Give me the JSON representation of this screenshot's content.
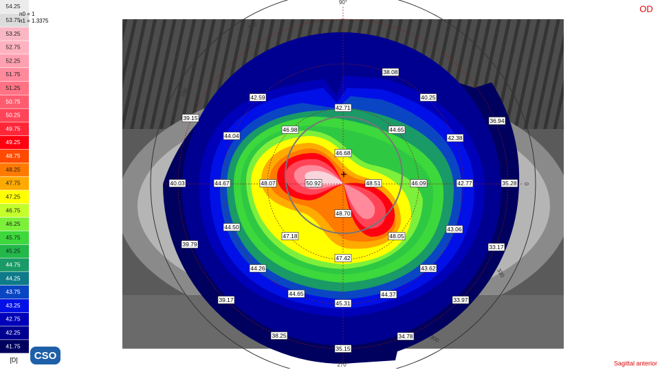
{
  "scale": {
    "items": [
      {
        "label": "54.25",
        "color": "#ececec"
      },
      {
        "label": "53.75",
        "color": "#dcdcdc"
      },
      {
        "label": "53.25",
        "color": "#f9b7c4"
      },
      {
        "label": "52.75",
        "color": "#ffb3c1"
      },
      {
        "label": "52.25",
        "color": "#ffa0b0"
      },
      {
        "label": "51.75",
        "color": "#ff8a9c"
      },
      {
        "label": "51.25",
        "color": "#ff7385"
      },
      {
        "label": "50.75",
        "color": "#ff5c70"
      },
      {
        "label": "50.25",
        "color": "#ff4458"
      },
      {
        "label": "49.75",
        "color": "#ff2638"
      },
      {
        "label": "49.25",
        "color": "#ff0010"
      },
      {
        "label": "48.75",
        "color": "#ff4a00"
      },
      {
        "label": "48.25",
        "color": "#ff7a00"
      },
      {
        "label": "47.75",
        "color": "#ffaa00"
      },
      {
        "label": "47.25",
        "color": "#ffff00"
      },
      {
        "label": "46.75",
        "color": "#c4ff2c"
      },
      {
        "label": "46.25",
        "color": "#7cf03a"
      },
      {
        "label": "45.75",
        "color": "#3cd83c"
      },
      {
        "label": "45.25",
        "color": "#22b84a"
      },
      {
        "label": "44.75",
        "color": "#1a9a66"
      },
      {
        "label": "44.25",
        "color": "#0e7a8a"
      },
      {
        "label": "43.75",
        "color": "#0a46c4"
      },
      {
        "label": "43.25",
        "color": "#0010e6"
      },
      {
        "label": "42.75",
        "color": "#0000b8"
      },
      {
        "label": "42.25",
        "color": "#000090"
      },
      {
        "label": "41.75",
        "color": "#00005e"
      }
    ],
    "unit": "[D]"
  },
  "indices": [
    "n0 = 1",
    "n1 = 1.3375"
  ],
  "logo": "CSO",
  "eye": "OD",
  "map_type": "Sagittal anterior",
  "angles": [
    "90°",
    "120",
    "150",
    "0",
    "330",
    "300",
    "270"
  ],
  "readings": [
    "38.08",
    "42.59",
    "40.25",
    "42.71",
    "39.15",
    "36.94",
    "46.98",
    "44.65",
    "44.04",
    "42.38",
    "46.68",
    "40.03",
    "44.67",
    "48.07",
    "50.92",
    "48.51",
    "46.09",
    "42.77",
    "35.28",
    "48.70",
    "44.50",
    "43.06",
    "47.18",
    "48.05",
    "39.79",
    "33.17",
    "47.42",
    "44.26",
    "43.62",
    "44.65",
    "44.37",
    "45.31",
    "39.17",
    "33.97",
    "38.25",
    "34.78",
    "35.15"
  ]
}
